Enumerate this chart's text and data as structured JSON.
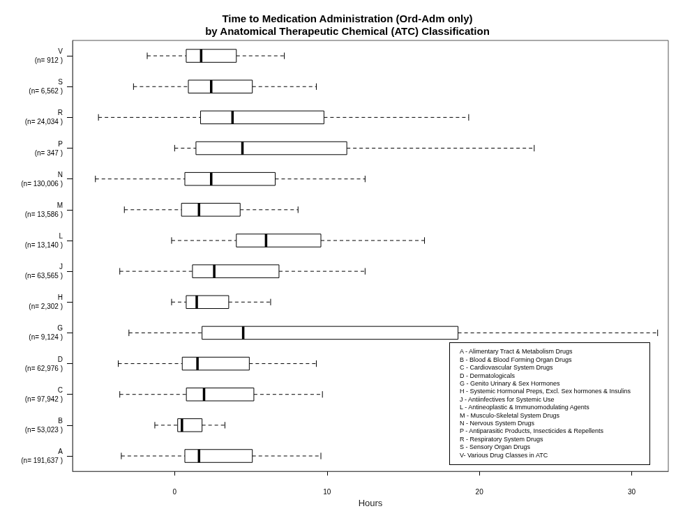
{
  "chart_data": {
    "type": "box",
    "orientation": "horizontal",
    "title": "Time to Medication Administration (Ord-Adm only)\nby Anatomical Therapeutic Chemical (ATC) Classification",
    "xlabel": "Hours",
    "categories": [
      "V\n(n= 912 )",
      "S\n(n= 6,562 )",
      "R\n(n= 24,034 )",
      "P\n(n= 347 )",
      "N\n(n= 130,006 )",
      "M\n(n= 13,586 )",
      "L\n(n= 13,140 )",
      "J\n(n= 63,565 )",
      "H\n(n= 2,302 )",
      "G\n(n= 9,124 )",
      "D\n(n= 62,976 )",
      "C\n(n= 97,942 )",
      "B\n(n= 53,023 )",
      "A\n(n= 191,637 )"
    ],
    "boxes": [
      {
        "low": -1.8,
        "q1": 0.76,
        "median": 1.74,
        "q3": 4.05,
        "high": 7.2
      },
      {
        "low": -2.7,
        "q1": 0.9,
        "median": 2.4,
        "q3": 5.1,
        "high": 9.3
      },
      {
        "low": -5.0,
        "q1": 1.7,
        "median": 3.8,
        "q3": 9.8,
        "high": 19.3
      },
      {
        "low": 0.0,
        "q1": 1.4,
        "median": 4.45,
        "q3": 11.3,
        "high": 23.6
      },
      {
        "low": -5.2,
        "q1": 0.67,
        "median": 2.4,
        "q3": 6.6,
        "high": 12.5
      },
      {
        "low": -3.3,
        "q1": 0.45,
        "median": 1.6,
        "q3": 4.3,
        "high": 8.1
      },
      {
        "low": -0.2,
        "q1": 4.05,
        "median": 6.0,
        "q3": 9.6,
        "high": 16.4
      },
      {
        "low": -3.6,
        "q1": 1.17,
        "median": 2.6,
        "q3": 6.85,
        "high": 12.5
      },
      {
        "low": -0.2,
        "q1": 0.76,
        "median": 1.45,
        "q3": 3.55,
        "high": 6.3
      },
      {
        "low": -3.0,
        "q1": 1.8,
        "median": 4.5,
        "q3": 18.6,
        "high": 31.7
      },
      {
        "low": -3.7,
        "q1": 0.5,
        "median": 1.5,
        "q3": 4.9,
        "high": 9.3
      },
      {
        "low": -3.6,
        "q1": 0.77,
        "median": 1.93,
        "q3": 5.2,
        "high": 9.7
      },
      {
        "low": -1.3,
        "q1": 0.2,
        "median": 0.48,
        "q3": 1.8,
        "high": 3.3
      },
      {
        "low": -3.5,
        "q1": 0.67,
        "median": 1.6,
        "q3": 5.1,
        "high": 9.6
      }
    ],
    "color": "#ffffff",
    "xlim": [
      -6.7,
      32.4
    ],
    "xticks": [
      0,
      10,
      20,
      30
    ],
    "grid": false,
    "line_style": "dashed",
    "annotations": [
      "A - Alimentary Tract & Metabolism Drugs",
      "B - Blood & Blood Forming Organ Drugs",
      "C - Cardiovascular System Drugs",
      "D - Dermatologicals",
      "G - Genito Urinary & Sex Hormones",
      "H - Systemic Hormonal Preps, Excl. Sex hormones & Insulins",
      "J - Antiinfectives for Systemic Use",
      "L - Antineoplastic & Immunomodulating Agents",
      "M - Musculo-Skeletal System Drugs",
      "N - Nervous System Drugs",
      "P - Antiparasitic Products, Insecticides & Repellents",
      "R - Respiratory System Drugs",
      "S - Sensory Organ Drugs",
      "V- Various Drug Classes in ATC"
    ]
  }
}
